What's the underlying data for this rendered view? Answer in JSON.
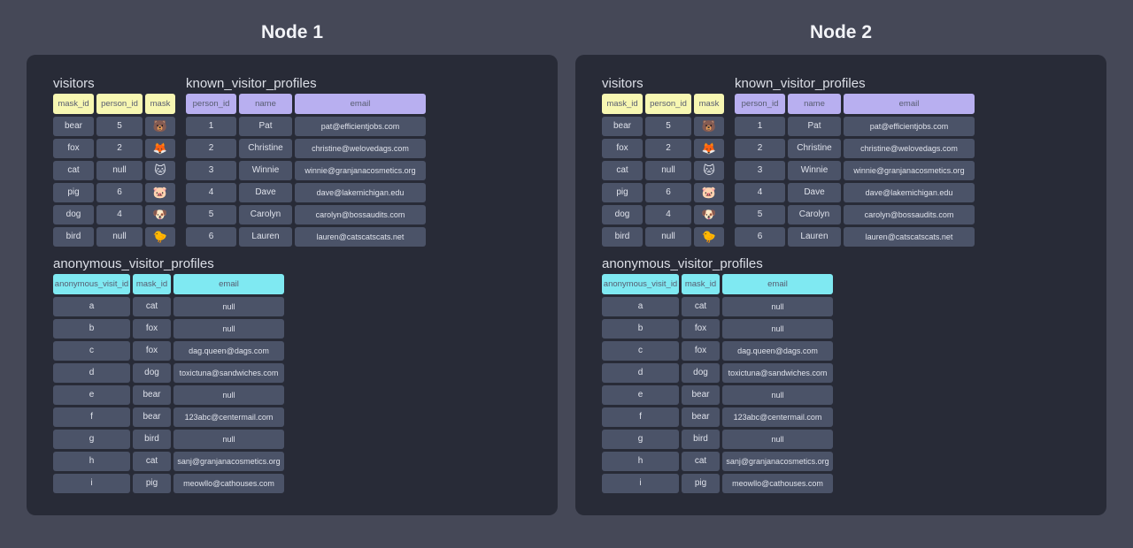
{
  "colors": {
    "page_background": "#454857",
    "panel_background": "#282b37",
    "cell_background": "#4b5368",
    "visitors_header": "#f7f7b2",
    "known_profiles_header": "#b8aff0",
    "anonymous_profiles_header": "#7fe9f2"
  },
  "nodes": [
    {
      "title": "Node 1",
      "tables": [
        {
          "id": "visitors",
          "title": "visitors",
          "header_color": "#f7f7b2",
          "columns": [
            "mask_id",
            "person_id",
            "mask"
          ],
          "rows": [
            [
              "bear",
              "5",
              "🐻"
            ],
            [
              "fox",
              "2",
              "🦊"
            ],
            [
              "cat",
              "null",
              "🐱"
            ],
            [
              "pig",
              "6",
              "🐷"
            ],
            [
              "dog",
              "4",
              "🐶"
            ],
            [
              "bird",
              "null",
              "🐤"
            ]
          ]
        },
        {
          "id": "known_visitor_profiles",
          "title": "known_visitor_profiles",
          "header_color": "#b8aff0",
          "columns": [
            "person_id",
            "name",
            "email"
          ],
          "rows": [
            [
              "1",
              "Pat",
              "pat@efficientjobs.com"
            ],
            [
              "2",
              "Christine",
              "christine@welovedags.com"
            ],
            [
              "3",
              "Winnie",
              "winnie@granjanacosmetics.org"
            ],
            [
              "4",
              "Dave",
              "dave@lakemichigan.edu"
            ],
            [
              "5",
              "Carolyn",
              "carolyn@bossaudits.com"
            ],
            [
              "6",
              "Lauren",
              "lauren@catscatscats.net"
            ]
          ]
        },
        {
          "id": "anonymous_visitor_profiles",
          "title": "anonymous_visitor_profiles",
          "header_color": "#7fe9f2",
          "columns": [
            "anonymous_visit_id",
            "mask_id",
            "email"
          ],
          "rows": [
            [
              "a",
              "cat",
              "null"
            ],
            [
              "b",
              "fox",
              "null"
            ],
            [
              "c",
              "fox",
              "dag.queen@dags.com"
            ],
            [
              "d",
              "dog",
              "toxictuna@sandwiches.com"
            ],
            [
              "e",
              "bear",
              "null"
            ],
            [
              "f",
              "bear",
              "123abc@centermail.com"
            ],
            [
              "g",
              "bird",
              "null"
            ],
            [
              "h",
              "cat",
              "sanj@granjanacosmetics.org"
            ],
            [
              "i",
              "pig",
              "meowllo@cathouses.com"
            ]
          ]
        }
      ]
    },
    {
      "title": "Node 2",
      "tables": [
        {
          "id": "visitors",
          "title": "visitors",
          "header_color": "#f7f7b2",
          "columns": [
            "mask_id",
            "person_id",
            "mask"
          ],
          "rows": [
            [
              "bear",
              "5",
              "🐻"
            ],
            [
              "fox",
              "2",
              "🦊"
            ],
            [
              "cat",
              "null",
              "🐱"
            ],
            [
              "pig",
              "6",
              "🐷"
            ],
            [
              "dog",
              "4",
              "🐶"
            ],
            [
              "bird",
              "null",
              "🐤"
            ]
          ]
        },
        {
          "id": "known_visitor_profiles",
          "title": "known_visitor_profiles",
          "header_color": "#b8aff0",
          "columns": [
            "person_id",
            "name",
            "email"
          ],
          "rows": [
            [
              "1",
              "Pat",
              "pat@efficientjobs.com"
            ],
            [
              "2",
              "Christine",
              "christine@welovedags.com"
            ],
            [
              "3",
              "Winnie",
              "winnie@granjanacosmetics.org"
            ],
            [
              "4",
              "Dave",
              "dave@lakemichigan.edu"
            ],
            [
              "5",
              "Carolyn",
              "carolyn@bossaudits.com"
            ],
            [
              "6",
              "Lauren",
              "lauren@catscatscats.net"
            ]
          ]
        },
        {
          "id": "anonymous_visitor_profiles",
          "title": "anonymous_visitor_profiles",
          "header_color": "#7fe9f2",
          "columns": [
            "anonymous_visit_id",
            "mask_id",
            "email"
          ],
          "rows": [
            [
              "a",
              "cat",
              "null"
            ],
            [
              "b",
              "fox",
              "null"
            ],
            [
              "c",
              "fox",
              "dag.queen@dags.com"
            ],
            [
              "d",
              "dog",
              "toxictuna@sandwiches.com"
            ],
            [
              "e",
              "bear",
              "null"
            ],
            [
              "f",
              "bear",
              "123abc@centermail.com"
            ],
            [
              "g",
              "bird",
              "null"
            ],
            [
              "h",
              "cat",
              "sanj@granjanacosmetics.org"
            ],
            [
              "i",
              "pig",
              "meowllo@cathouses.com"
            ]
          ]
        }
      ]
    }
  ]
}
